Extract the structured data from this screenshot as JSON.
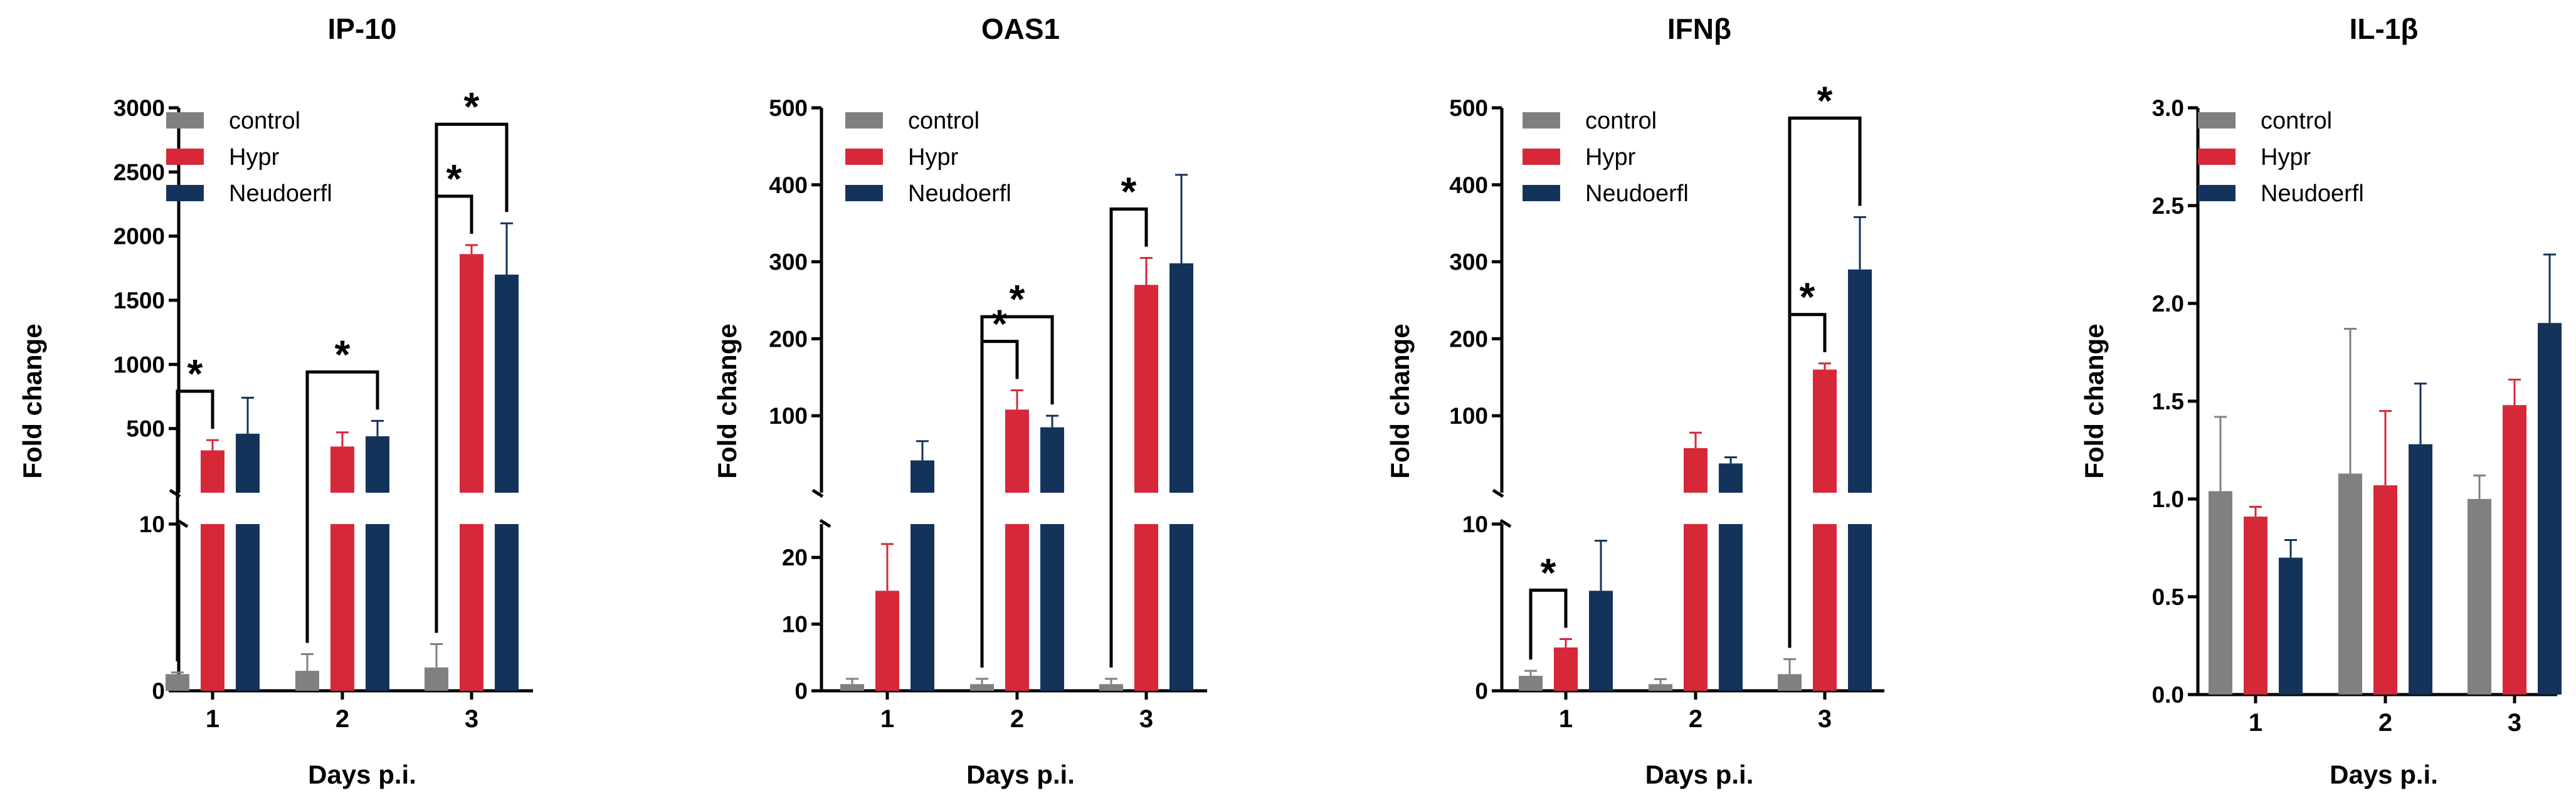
{
  "chart_data": [
    {
      "type": "bar",
      "title": "IP-10",
      "xlabel": "Days p.i.",
      "ylabel": "Fold change",
      "categories": [
        "1",
        "2",
        "3"
      ],
      "colors": [
        "#808080",
        "#d62839",
        "#14335a"
      ],
      "axis_break": true,
      "lower_range": [
        0,
        10
      ],
      "upper_range": [
        0,
        3000
      ],
      "yticks_lower": [
        "0",
        "10"
      ],
      "yticks_upper": [
        "500",
        "1000",
        "1500",
        "2000",
        "2500",
        "3000"
      ],
      "series": [
        {
          "name": "control",
          "values": [
            1,
            1.2,
            1.4
          ],
          "errors": [
            0.1,
            1.0,
            1.4
          ]
        },
        {
          "name": "Hypr",
          "values": [
            330,
            360,
            1860
          ],
          "errors": [
            80,
            110,
            70
          ]
        },
        {
          "name": "Neudoerfl",
          "values": [
            460,
            440,
            1700
          ],
          "errors": [
            280,
            120,
            400
          ]
        }
      ],
      "significance": [
        {
          "label": "*",
          "day": 0,
          "from": 0,
          "to": 1
        },
        {
          "label": "*",
          "day": 1,
          "from": 0,
          "to": 2
        },
        {
          "label": "*",
          "day": 2,
          "from": 0,
          "to": 1
        },
        {
          "label": "*",
          "day": 2,
          "from": 0,
          "to": 2
        }
      ]
    },
    {
      "type": "bar",
      "title": "OAS1",
      "xlabel": "Days p.i.",
      "ylabel": "Fold change",
      "categories": [
        "1",
        "2",
        "3"
      ],
      "colors": [
        "#808080",
        "#d62839",
        "#14335a"
      ],
      "axis_break": true,
      "lower_range": [
        0,
        25
      ],
      "upper_range": [
        0,
        500
      ],
      "yticks_lower": [
        "0",
        "10",
        "20"
      ],
      "yticks_upper": [
        "100",
        "200",
        "300",
        "400",
        "500"
      ],
      "series": [
        {
          "name": "control",
          "values": [
            1,
            1,
            1
          ],
          "errors": [
            0.8,
            0.8,
            0.8
          ]
        },
        {
          "name": "Hypr",
          "values": [
            15,
            108,
            270
          ],
          "errors": [
            7,
            25,
            35
          ]
        },
        {
          "name": "Neudoerfl",
          "values": [
            42,
            85,
            298
          ],
          "errors": [
            25,
            15,
            115
          ]
        }
      ],
      "significance": [
        {
          "label": "*",
          "day": 1,
          "from": 0,
          "to": 1
        },
        {
          "label": "*",
          "day": 1,
          "from": 0,
          "to": 2
        },
        {
          "label": "*",
          "day": 2,
          "from": 0,
          "to": 1
        }
      ]
    },
    {
      "type": "bar",
      "title": "IFNβ",
      "xlabel": "Days p.i.",
      "ylabel": "Fold change",
      "categories": [
        "1",
        "2",
        "3"
      ],
      "colors": [
        "#808080",
        "#d62839",
        "#14335a"
      ],
      "axis_break": true,
      "lower_range": [
        0,
        10
      ],
      "upper_range": [
        0,
        500
      ],
      "yticks_lower": [
        "0",
        "10"
      ],
      "yticks_upper": [
        "100",
        "200",
        "300",
        "400",
        "500"
      ],
      "series": [
        {
          "name": "control",
          "values": [
            0.9,
            0.4,
            1.0
          ],
          "errors": [
            0.3,
            0.3,
            0.9
          ]
        },
        {
          "name": "Hypr",
          "values": [
            2.6,
            58,
            160
          ],
          "errors": [
            0.5,
            20,
            8
          ]
        },
        {
          "name": "Neudoerfl",
          "values": [
            6.0,
            38,
            290
          ],
          "errors": [
            3,
            8,
            68
          ]
        }
      ],
      "significance": [
        {
          "label": "*",
          "day": 0,
          "from": 0,
          "to": 1
        },
        {
          "label": "*",
          "day": 2,
          "from": 0,
          "to": 1
        },
        {
          "label": "*",
          "day": 2,
          "from": 0,
          "to": 2
        }
      ]
    },
    {
      "type": "bar",
      "title": "IL-1β",
      "xlabel": "Days p.i.",
      "ylabel": "Fold change",
      "categories": [
        "1",
        "2",
        "3"
      ],
      "colors": [
        "#808080",
        "#d62839",
        "#14335a"
      ],
      "axis_break": false,
      "ylim": [
        0,
        3.0
      ],
      "yticks": [
        "0.0",
        "0.5",
        "1.0",
        "1.5",
        "2.0",
        "2.5",
        "3.0"
      ],
      "series": [
        {
          "name": "control",
          "values": [
            1.04,
            1.13,
            1.0
          ],
          "errors": [
            0.38,
            0.74,
            0.12
          ]
        },
        {
          "name": "Hypr",
          "values": [
            0.91,
            1.07,
            1.48
          ],
          "errors": [
            0.05,
            0.38,
            0.13
          ]
        },
        {
          "name": "Neudoerfl",
          "values": [
            0.7,
            1.28,
            1.9
          ],
          "errors": [
            0.09,
            0.31,
            0.35
          ]
        }
      ],
      "significance": []
    }
  ]
}
